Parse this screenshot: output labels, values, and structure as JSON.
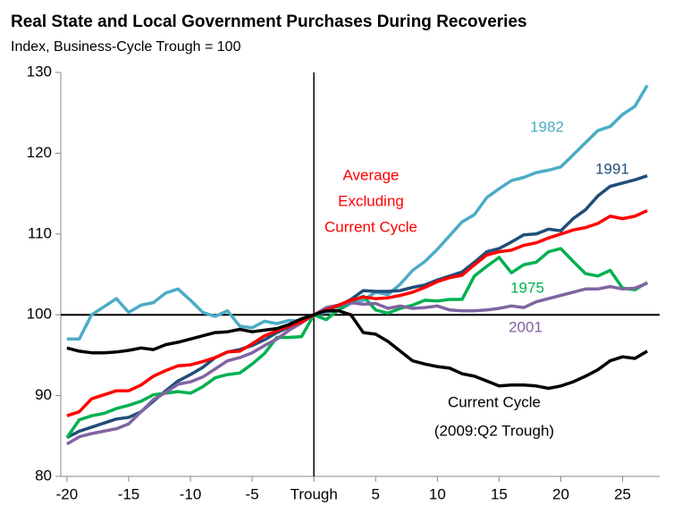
{
  "chart_data": {
    "type": "line",
    "title": "Real State and Local Government Purchases During Recoveries",
    "subtitle": "Index, Business-Cycle Trough = 100",
    "x": [
      -20,
      -19,
      -18,
      -17,
      -16,
      -15,
      -14,
      -13,
      -12,
      -11,
      -10,
      -9,
      -8,
      -7,
      -6,
      -5,
      -4,
      -3,
      -2,
      -1,
      0,
      1,
      2,
      3,
      4,
      5,
      6,
      7,
      8,
      9,
      10,
      11,
      12,
      13,
      14,
      15,
      16,
      17,
      18,
      19,
      20,
      21,
      22,
      23,
      24,
      25,
      26,
      27
    ],
    "xlim": [
      -20.5,
      28
    ],
    "xticks": [
      -20,
      -15,
      -10,
      -5,
      {
        "value": 0,
        "label": "Trough"
      },
      5,
      10,
      15,
      20,
      25
    ],
    "ylim": [
      80,
      130
    ],
    "yticks": [
      80,
      90,
      100,
      110,
      120,
      130
    ],
    "hline": 100,
    "vline": 0,
    "series": [
      {
        "name": "1982",
        "color": "#4bacc6",
        "values": [
          97,
          97,
          100,
          101,
          102,
          100.3,
          101.2,
          101.5,
          102.7,
          103.2,
          101.8,
          100.3,
          99.8,
          100.5,
          98.6,
          98.4,
          99.2,
          98.9,
          99.3,
          99.2,
          100,
          100.3,
          100.6,
          101.4,
          101.8,
          102.8,
          102.5,
          103.8,
          105.5,
          106.6,
          108.1,
          109.8,
          111.5,
          112.4,
          114.5,
          115.6,
          116.6,
          117,
          117.6,
          117.9,
          118.3,
          119.8,
          121.3,
          122.8,
          123.3,
          124.8,
          125.8,
          128.4
        ]
      },
      {
        "name": "1991",
        "color": "#1f4e79",
        "values": [
          84.8,
          85.6,
          86.1,
          86.6,
          87.1,
          87.3,
          88,
          89.3,
          90.6,
          91.8,
          92.6,
          93.5,
          94.7,
          95.4,
          95.7,
          96.2,
          96.9,
          97.8,
          98.5,
          99.1,
          100,
          100.6,
          101.1,
          101.9,
          103,
          102.9,
          102.9,
          103,
          103.4,
          103.7,
          104.3,
          104.8,
          105.3,
          106.5,
          107.8,
          108.2,
          109,
          109.9,
          110,
          110.6,
          110.4,
          111.9,
          113,
          114.7,
          115.9,
          116.3,
          116.7,
          117.2
        ]
      },
      {
        "name": "1975",
        "color": "#00b050",
        "values": [
          84.8,
          87,
          87.5,
          87.8,
          88.4,
          88.8,
          89.3,
          90.1,
          90.3,
          90.5,
          90.3,
          91.1,
          92.2,
          92.6,
          92.8,
          93.9,
          95.2,
          97.2,
          97.2,
          97.3,
          100,
          99.4,
          100.6,
          101.6,
          102.3,
          100.6,
          100.2,
          100.8,
          101.2,
          101.8,
          101.7,
          101.9,
          101.9,
          104.8,
          106,
          107.1,
          105.2,
          106.2,
          106.5,
          107.8,
          108.2,
          106.6,
          105.1,
          104.8,
          105.5,
          103.3,
          103.1,
          104
        ]
      },
      {
        "name": "2001",
        "color": "#8064a2",
        "values": [
          84,
          84.9,
          85.3,
          85.6,
          85.9,
          86.5,
          88,
          89.5,
          90.4,
          91.4,
          91.7,
          92.3,
          93.3,
          94.3,
          94.7,
          95.3,
          96.2,
          97,
          98.1,
          99,
          100,
          100.9,
          101.2,
          101.5,
          101.3,
          101.4,
          100.8,
          101.1,
          100.8,
          100.9,
          101.1,
          100.6,
          100.5,
          100.5,
          100.6,
          100.8,
          101.1,
          100.9,
          101.6,
          102,
          102.4,
          102.8,
          103.2,
          103.2,
          103.5,
          103.2,
          103.3,
          103.9
        ]
      },
      {
        "name": [
          "Average",
          "Excluding",
          "Current Cycle"
        ],
        "color": "#ff0000",
        "values": [
          87.5,
          88,
          89.6,
          90.1,
          90.6,
          90.6,
          91.3,
          92.4,
          93.1,
          93.7,
          93.8,
          94.2,
          94.7,
          95.4,
          95.5,
          96.4,
          97.4,
          98,
          98.6,
          99.1,
          100,
          100.6,
          101.2,
          101.8,
          102.2,
          102,
          102.1,
          102.4,
          102.8,
          103.4,
          104.1,
          104.6,
          104.9,
          106.2,
          107.4,
          107.8,
          108,
          108.6,
          108.9,
          109.5,
          110,
          110.5,
          110.8,
          111.3,
          112.2,
          111.9,
          112.2,
          112.9
        ]
      },
      {
        "name": [
          "Current Cycle",
          "(2009:Q2 Trough)"
        ],
        "color": "#000000",
        "values": [
          95.9,
          95.5,
          95.3,
          95.3,
          95.4,
          95.6,
          95.9,
          95.7,
          96.3,
          96.6,
          97,
          97.4,
          97.8,
          97.9,
          98.2,
          97.9,
          98.1,
          98.3,
          98.8,
          99.5,
          100,
          100.5,
          100.5,
          100,
          97.8,
          97.6,
          96.7,
          95.5,
          94.3,
          93.9,
          93.6,
          93.4,
          92.7,
          92.4,
          91.8,
          91.2,
          91.3,
          91.3,
          91.2,
          90.9,
          91.2,
          91.7,
          92.4,
          93.2,
          94.3,
          94.8,
          94.6,
          95.5
        ]
      }
    ]
  }
}
